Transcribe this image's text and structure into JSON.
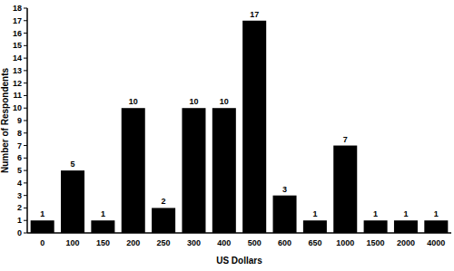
{
  "chart_data": {
    "type": "bar",
    "x_label": "US Dollars",
    "y_label": "Number of Respondents",
    "categories": [
      "0",
      "100",
      "150",
      "200",
      "250",
      "300",
      "400",
      "500",
      "600",
      "650",
      "1000",
      "1500",
      "2000",
      "4000"
    ],
    "values": [
      1,
      5,
      1,
      10,
      2,
      10,
      10,
      17,
      3,
      1,
      7,
      1,
      1,
      1
    ],
    "color": "#000000",
    "ylim": [
      0,
      18
    ],
    "yticks": [
      0,
      1,
      2,
      3,
      4,
      5,
      6,
      7,
      8,
      9,
      10,
      11,
      12,
      13,
      14,
      15,
      16,
      17,
      18
    ],
    "grid": false,
    "data_labels": true
  }
}
